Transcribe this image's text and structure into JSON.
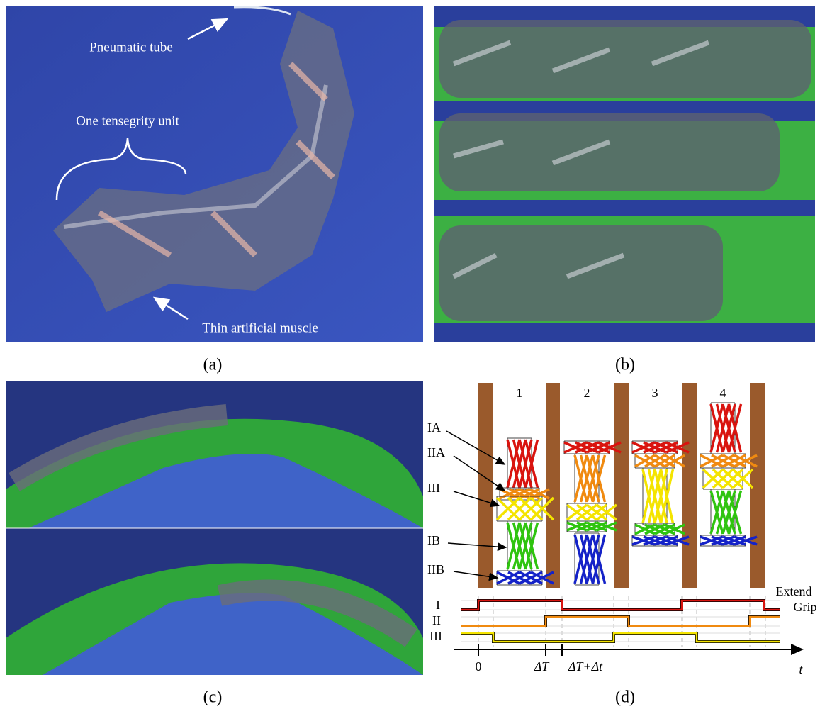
{
  "panels": [
    {
      "label": "(a)",
      "annotations": [
        "Pneumatic tube",
        "One tensegrity unit",
        "Thin artificial muscle"
      ]
    },
    {
      "label": "(b)"
    },
    {
      "label": "(c)"
    },
    {
      "label": "(d)",
      "columns": [
        "1",
        "2",
        "3",
        "4"
      ],
      "unit_labels": [
        "IA",
        "IIA",
        "III",
        "IB",
        "IIB"
      ],
      "signals": [
        "I",
        "II",
        "III"
      ],
      "states": [
        "Extend",
        "Grip"
      ],
      "time_labels": [
        "0",
        "ΔT",
        "ΔT+Δt",
        "t"
      ]
    }
  ]
}
